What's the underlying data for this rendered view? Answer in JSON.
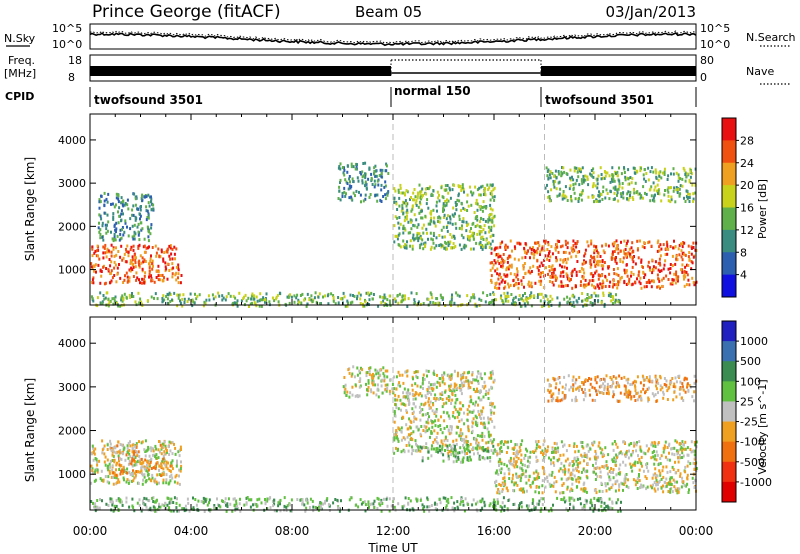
{
  "header": {
    "station": "Prince George (fitACF)",
    "beam": "Beam 05",
    "date": "03/Jan/2013"
  },
  "top_panels": {
    "nsky_label": "N.Sky",
    "nsearch_label": "N.Search",
    "nsky_ticks": [
      "10^5",
      "10^0"
    ],
    "freq_label_line1": "Freq.",
    "freq_label_line2": "[MHz]",
    "freq_ticks": [
      "18",
      "8"
    ],
    "nave_label": "Nave",
    "nave_ticks": [
      "80",
      "0"
    ],
    "cpid_label": "CPID",
    "cpid_segments": [
      {
        "label": "twofsound 3501",
        "start_hour": 0,
        "end_hour": 12
      },
      {
        "label": "normal 150",
        "start_hour": 12,
        "end_hour": 18
      },
      {
        "label": "twofsound 3501",
        "start_hour": 18,
        "end_hour": 24
      }
    ]
  },
  "chart_data": [
    {
      "type": "heatmap",
      "name": "power",
      "ylabel": "Slant Range [km]",
      "ylim": [
        180,
        4600
      ],
      "yticks": [
        1000,
        2000,
        3000,
        4000
      ],
      "xlim_hours": [
        0,
        24
      ],
      "colorbar_label": "Power [dB]",
      "colorbar_ticks": [
        "4",
        "8",
        "12",
        "16",
        "20",
        "24",
        "28"
      ],
      "colorbar_colors": [
        "#1010e0",
        "#2d5fb0",
        "#3a8c80",
        "#5fb04a",
        "#c8d21a",
        "#f0a020",
        "#f05010",
        "#e81010"
      ],
      "regions": [
        {
          "t0": 0.0,
          "t1": 3.6,
          "r0": 700,
          "r1": 1600,
          "level": 6
        },
        {
          "t0": 0.3,
          "t1": 2.5,
          "r0": 1700,
          "r1": 2800,
          "level": 2
        },
        {
          "t0": 9.8,
          "t1": 11.8,
          "r0": 2600,
          "r1": 3500,
          "level": 2
        },
        {
          "t0": 12.0,
          "t1": 16.0,
          "r0": 1500,
          "r1": 3000,
          "level": 3
        },
        {
          "t0": 15.8,
          "t1": 24.0,
          "r0": 600,
          "r1": 1700,
          "level": 6
        },
        {
          "t0": 18.0,
          "t1": 24.0,
          "r0": 2600,
          "r1": 3400,
          "level": 3
        },
        {
          "t0": 0.0,
          "t1": 21.0,
          "r0": 180,
          "r1": 500,
          "level": 3
        }
      ]
    },
    {
      "type": "heatmap",
      "name": "velocity",
      "ylabel": "Slant Range [km]",
      "ylim": [
        180,
        4600
      ],
      "yticks": [
        1000,
        2000,
        3000,
        4000
      ],
      "xlim_hours": [
        0,
        24
      ],
      "xticks": [
        "00:00",
        "04:00",
        "08:00",
        "12:00",
        "16:00",
        "20:00",
        "00:00"
      ],
      "xlabel": "Time UT",
      "colorbar_label": "Velocity [m s^-1]",
      "colorbar_ticks": [
        "1000",
        "500",
        "100",
        "25",
        "-25",
        "-100",
        "-500",
        "-1000"
      ],
      "colorbar_colors": [
        "#2020c0",
        "#3a6fb0",
        "#3a8c50",
        "#60c040",
        "#c0c0c0",
        "#f0a020",
        "#f07010",
        "#f03010",
        "#e00000"
      ],
      "regions": [
        {
          "t0": 0.0,
          "t1": 3.6,
          "r0": 800,
          "r1": 1800,
          "level": 4
        },
        {
          "t0": 0.8,
          "t1": 3.2,
          "r0": 1000,
          "r1": 1700,
          "level": 5
        },
        {
          "t0": 10.0,
          "t1": 12.0,
          "r0": 2800,
          "r1": 3500,
          "level": 4
        },
        {
          "t0": 12.0,
          "t1": 16.0,
          "r0": 1500,
          "r1": 3400,
          "level": 4
        },
        {
          "t0": 13.0,
          "t1": 16.0,
          "r0": 1300,
          "r1": 1700,
          "level": 3
        },
        {
          "t0": 16.0,
          "t1": 24.0,
          "r0": 600,
          "r1": 1800,
          "level": 4
        },
        {
          "t0": 18.0,
          "t1": 24.0,
          "r0": 2700,
          "r1": 3300,
          "level": 5
        },
        {
          "t0": 0.0,
          "t1": 21.0,
          "r0": 180,
          "r1": 500,
          "level": 3
        }
      ]
    }
  ]
}
